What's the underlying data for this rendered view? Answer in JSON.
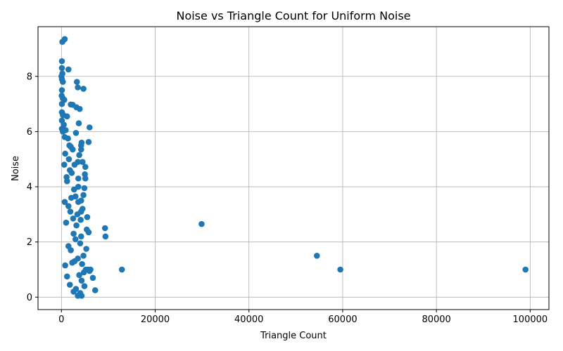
{
  "chart_data": {
    "type": "scatter",
    "title": "Noise vs Triangle Count for Uniform Noise",
    "xlabel": "Triangle Count",
    "ylabel": "Noise",
    "xlim": [
      -5000,
      104000
    ],
    "ylim": [
      -0.45,
      9.8
    ],
    "xticks": [
      0,
      20000,
      40000,
      60000,
      80000,
      100000
    ],
    "xtick_labels": [
      "0",
      "20000",
      "40000",
      "60000",
      "80000",
      "100000"
    ],
    "yticks": [
      0,
      2,
      4,
      6,
      8
    ],
    "ytick_labels": [
      "0",
      "2",
      "4",
      "6",
      "8"
    ],
    "grid": true,
    "color": "#1f77b4",
    "series": [
      {
        "points": [
          [
            200,
            9.25
          ],
          [
            700,
            9.35
          ],
          [
            100,
            8.55
          ],
          [
            1500,
            8.25
          ],
          [
            100,
            8.3
          ],
          [
            200,
            8.1
          ],
          [
            0,
            8.0
          ],
          [
            100,
            7.9
          ],
          [
            300,
            7.8
          ],
          [
            3300,
            7.8
          ],
          [
            3500,
            7.6
          ],
          [
            4700,
            7.55
          ],
          [
            100,
            7.5
          ],
          [
            50,
            7.3
          ],
          [
            300,
            7.2
          ],
          [
            600,
            7.15
          ],
          [
            100,
            7.0
          ],
          [
            2000,
            6.98
          ],
          [
            2400,
            6.97
          ],
          [
            3200,
            6.88
          ],
          [
            3900,
            6.82
          ],
          [
            100,
            6.7
          ],
          [
            300,
            6.6
          ],
          [
            1200,
            6.55
          ],
          [
            100,
            6.4
          ],
          [
            3700,
            6.3
          ],
          [
            500,
            6.25
          ],
          [
            6000,
            6.15
          ],
          [
            100,
            6.1
          ],
          [
            300,
            6.0
          ],
          [
            3100,
            5.95
          ],
          [
            700,
            5.8
          ],
          [
            1400,
            5.75
          ],
          [
            4300,
            5.6
          ],
          [
            5800,
            5.62
          ],
          [
            4200,
            5.5
          ],
          [
            2000,
            5.45
          ],
          [
            2400,
            5.35
          ],
          [
            4200,
            5.35
          ],
          [
            800,
            5.2
          ],
          [
            3800,
            5.15
          ],
          [
            1600,
            5.0
          ],
          [
            3500,
            4.9
          ],
          [
            4500,
            4.9
          ],
          [
            2800,
            4.8
          ],
          [
            5100,
            4.72
          ],
          [
            1800,
            4.6
          ],
          [
            2200,
            4.5
          ],
          [
            5000,
            4.45
          ],
          [
            5100,
            4.3
          ],
          [
            3600,
            4.3
          ],
          [
            1200,
            4.2
          ],
          [
            3600,
            4.0
          ],
          [
            4900,
            3.95
          ],
          [
            4700,
            3.7
          ],
          [
            3000,
            3.65
          ],
          [
            2100,
            3.6
          ],
          [
            4200,
            3.5
          ],
          [
            3600,
            3.45
          ],
          [
            1500,
            3.3
          ],
          [
            4500,
            3.2
          ],
          [
            4200,
            3.1
          ],
          [
            3400,
            3.0
          ],
          [
            5500,
            2.9
          ],
          [
            2500,
            2.85
          ],
          [
            4100,
            2.8
          ],
          [
            3200,
            2.6
          ],
          [
            9300,
            2.5
          ],
          [
            5400,
            2.45
          ],
          [
            5800,
            2.35
          ],
          [
            9400,
            2.2
          ],
          [
            4200,
            2.2
          ],
          [
            3000,
            2.1
          ],
          [
            4000,
            1.95
          ],
          [
            5300,
            1.75
          ],
          [
            2000,
            1.7
          ],
          [
            4700,
            1.5
          ],
          [
            3500,
            1.4
          ],
          [
            2800,
            1.3
          ],
          [
            4400,
            1.2
          ],
          [
            5200,
            1.0
          ],
          [
            5600,
            1.0
          ],
          [
            6200,
            1.0
          ],
          [
            6000,
            0.95
          ],
          [
            4800,
            0.9
          ],
          [
            3800,
            0.8
          ],
          [
            6700,
            0.7
          ],
          [
            4300,
            0.6
          ],
          [
            4900,
            0.4
          ],
          [
            3100,
            0.3
          ],
          [
            7200,
            0.25
          ],
          [
            4000,
            0.15
          ],
          [
            4300,
            0.05
          ],
          [
            3500,
            0.05
          ],
          [
            2600,
            0.2
          ],
          [
            1800,
            0.45
          ],
          [
            1200,
            0.75
          ],
          [
            800,
            1.15
          ],
          [
            2300,
            1.25
          ],
          [
            1500,
            1.85
          ],
          [
            2600,
            2.3
          ],
          [
            1000,
            2.7
          ],
          [
            1900,
            3.1
          ],
          [
            700,
            3.45
          ],
          [
            2700,
            3.9
          ],
          [
            1100,
            4.35
          ],
          [
            600,
            4.8
          ],
          [
            1700,
            5.5
          ],
          [
            900,
            6.05
          ],
          [
            400,
            6.6
          ],
          [
            12900,
            1.0
          ],
          [
            29900,
            2.65
          ],
          [
            54500,
            1.5
          ],
          [
            59500,
            1.0
          ],
          [
            99000,
            1.0
          ]
        ]
      }
    ]
  }
}
